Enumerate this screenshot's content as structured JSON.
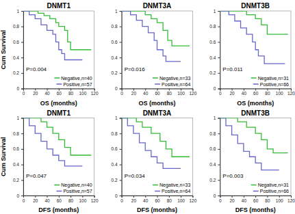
{
  "chart_data": [
    {
      "type": "line",
      "title": "DNMT1",
      "x_label": "OS (months)",
      "y_label": "Cum Survival",
      "xlim": [
        0,
        120
      ],
      "xticks": [
        0,
        20,
        40,
        60,
        80,
        100,
        120
      ],
      "ylim": [
        0,
        1
      ],
      "yticks": [
        0,
        0.2,
        0.4,
        0.6,
        0.8,
        1
      ],
      "legend": "lower right",
      "annotations": [
        "P=0.004"
      ],
      "series": [
        {
          "name": "Negative,n=40",
          "color": "#33bb33",
          "x": [
            0,
            25,
            35,
            45,
            55,
            60,
            70,
            75,
            80,
            115
          ],
          "values": [
            1,
            0.97,
            0.94,
            0.9,
            0.85,
            0.8,
            0.75,
            0.6,
            0.5,
            0.5
          ]
        },
        {
          "name": "Positive,n=57",
          "color": "#6666cc",
          "x": [
            0,
            10,
            20,
            30,
            40,
            50,
            55,
            60,
            65,
            70,
            100
          ],
          "values": [
            1,
            0.95,
            0.9,
            0.82,
            0.75,
            0.7,
            0.6,
            0.5,
            0.45,
            0.37,
            0.37
          ]
        }
      ]
    },
    {
      "type": "line",
      "title": "DNMT3A",
      "x_label": "OS (months)",
      "xlim": [
        0,
        120
      ],
      "xticks": [
        0,
        20,
        40,
        60,
        80,
        100,
        120
      ],
      "ylim": [
        0,
        1
      ],
      "yticks": [
        0,
        0.2,
        0.4,
        0.6,
        0.8,
        1
      ],
      "legend": "lower right",
      "annotations": [
        "P=0.016"
      ],
      "series": [
        {
          "name": "Negative,n=33",
          "color": "#33bb33",
          "x": [
            0,
            40,
            50,
            60,
            70,
            78,
            85,
            115
          ],
          "values": [
            1,
            0.95,
            0.9,
            0.85,
            0.75,
            0.62,
            0.55,
            0.55
          ]
        },
        {
          "name": "Positive,n=64",
          "color": "#6666cc",
          "x": [
            0,
            15,
            25,
            35,
            45,
            55,
            60,
            70,
            75,
            100
          ],
          "values": [
            1,
            0.95,
            0.88,
            0.8,
            0.72,
            0.62,
            0.5,
            0.42,
            0.35,
            0.35
          ]
        }
      ]
    },
    {
      "type": "line",
      "title": "DNMT3B",
      "x_label": "OS (months)",
      "xlim": [
        0,
        120
      ],
      "xticks": [
        0,
        20,
        40,
        60,
        80,
        100,
        120
      ],
      "ylim": [
        0,
        1
      ],
      "yticks": [
        0,
        0.2,
        0.4,
        0.6,
        0.8,
        1
      ],
      "legend": "lower right",
      "annotations": [
        "P=0.011"
      ],
      "series": [
        {
          "name": "Negative,n=31",
          "color": "#33bb33",
          "x": [
            0,
            45,
            60,
            70,
            80,
            115
          ],
          "values": [
            1,
            0.95,
            0.9,
            0.82,
            0.7,
            0.7
          ]
        },
        {
          "name": "Positive,n=66",
          "color": "#6666cc",
          "x": [
            0,
            15,
            25,
            35,
            45,
            55,
            60,
            65,
            75,
            110
          ],
          "values": [
            1,
            0.95,
            0.87,
            0.78,
            0.7,
            0.6,
            0.5,
            0.42,
            0.32,
            0.32
          ]
        }
      ]
    },
    {
      "type": "line",
      "title": "DNMT1",
      "x_label": "DFS (months)",
      "y_label": "Cum Survival",
      "xlim": [
        0,
        120
      ],
      "xticks": [
        0,
        20,
        40,
        60,
        80,
        100,
        120
      ],
      "ylim": [
        0,
        1
      ],
      "yticks": [
        0,
        0.2,
        0.4,
        0.6,
        0.8,
        1
      ],
      "legend": "lower right",
      "annotations": [
        "P=0.047"
      ],
      "series": [
        {
          "name": "Negative,n=40",
          "color": "#33bb33",
          "x": [
            0,
            30,
            40,
            50,
            60,
            70,
            80,
            115
          ],
          "values": [
            1,
            0.95,
            0.88,
            0.8,
            0.72,
            0.62,
            0.52,
            0.52
          ]
        },
        {
          "name": "Positive,n=57",
          "color": "#6666cc",
          "x": [
            0,
            10,
            20,
            30,
            40,
            50,
            60,
            70,
            100
          ],
          "values": [
            1,
            0.9,
            0.8,
            0.7,
            0.6,
            0.52,
            0.45,
            0.38,
            0.38
          ]
        }
      ]
    },
    {
      "type": "line",
      "title": "DNMT3A",
      "x_label": "DFS (months)",
      "xlim": [
        0,
        120
      ],
      "xticks": [
        0,
        20,
        40,
        60,
        80,
        100,
        120
      ],
      "ylim": [
        0,
        1
      ],
      "yticks": [
        0,
        0.2,
        0.4,
        0.6,
        0.8,
        1
      ],
      "legend": "lower right",
      "annotations": [
        "P=0.034"
      ],
      "series": [
        {
          "name": "Negative,n=33",
          "color": "#33bb33",
          "x": [
            0,
            25,
            35,
            50,
            65,
            75,
            85,
            115
          ],
          "values": [
            1,
            0.95,
            0.88,
            0.8,
            0.7,
            0.6,
            0.5,
            0.5
          ]
        },
        {
          "name": "Positive,n=64",
          "color": "#6666cc",
          "x": [
            0,
            10,
            20,
            30,
            40,
            50,
            60,
            70,
            100
          ],
          "values": [
            1,
            0.9,
            0.8,
            0.68,
            0.58,
            0.5,
            0.42,
            0.35,
            0.35
          ]
        }
      ]
    },
    {
      "type": "line",
      "title": "DNMT3B",
      "x_label": "DFS (months)",
      "xlim": [
        0,
        120
      ],
      "xticks": [
        0,
        20,
        40,
        60,
        80,
        100,
        120
      ],
      "ylim": [
        0,
        1
      ],
      "yticks": [
        0,
        0.2,
        0.4,
        0.6,
        0.8,
        1
      ],
      "legend": "lower right",
      "annotations": [
        "P=0.003"
      ],
      "series": [
        {
          "name": "Negative,n=31",
          "color": "#33bb33",
          "x": [
            0,
            30,
            45,
            60,
            70,
            80,
            90,
            115
          ],
          "values": [
            1,
            0.95,
            0.88,
            0.8,
            0.72,
            0.6,
            0.55,
            0.55
          ]
        },
        {
          "name": "Positive,n=66",
          "color": "#6666cc",
          "x": [
            0,
            10,
            20,
            30,
            40,
            50,
            60,
            70,
            100
          ],
          "values": [
            1,
            0.9,
            0.78,
            0.67,
            0.57,
            0.5,
            0.42,
            0.33,
            0.33
          ]
        }
      ]
    }
  ]
}
